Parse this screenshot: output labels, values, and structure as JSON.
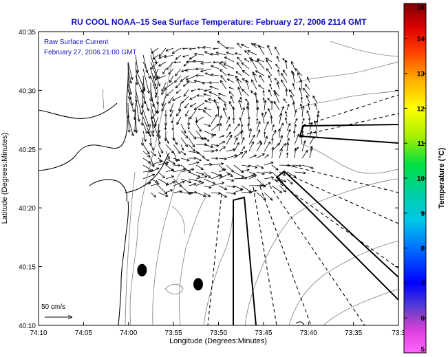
{
  "title": "RU COOL  NOAA–15  Sea Surface Temperature:  February 27, 2006 2114 GMT",
  "annotation": {
    "line1": "Raw Surface Current",
    "line2": "February 27, 2006 21:00 GMT"
  },
  "scale_label": "50 cm/s",
  "axes": {
    "xlabel": "Longitude (Degrees:Minutes)",
    "ylabel": "Latitude (Degrees:Minutes)",
    "x_ticks": [
      "74:10",
      "74:05",
      "74:00",
      "73:55",
      "73:50",
      "73:45",
      "73:40",
      "73:35",
      "73:3"
    ],
    "y_ticks": [
      "40:35",
      "40:30",
      "40:25",
      "40:20",
      "40:15",
      "40:10"
    ]
  },
  "colorbar": {
    "label": "Temperature (°C)",
    "ticks": [
      "15",
      "14",
      "13",
      "12",
      "11",
      "10",
      "9",
      "8",
      "7",
      "6",
      "5"
    ],
    "min": 5,
    "max": 15
  },
  "chart_data": {
    "type": "map",
    "lon_range_deg": [
      -74.1667,
      -73.5
    ],
    "lat_range_deg": [
      40.1667,
      40.5833
    ],
    "stations": [
      {
        "lon": -73.975,
        "lat": 40.245
      },
      {
        "lon": -73.871,
        "lat": 40.225
      }
    ]
  },
  "colors": {
    "title": "#1010c0",
    "coast": "#000000",
    "bathymetry": "#8a8a8a",
    "vector": "#000000"
  }
}
